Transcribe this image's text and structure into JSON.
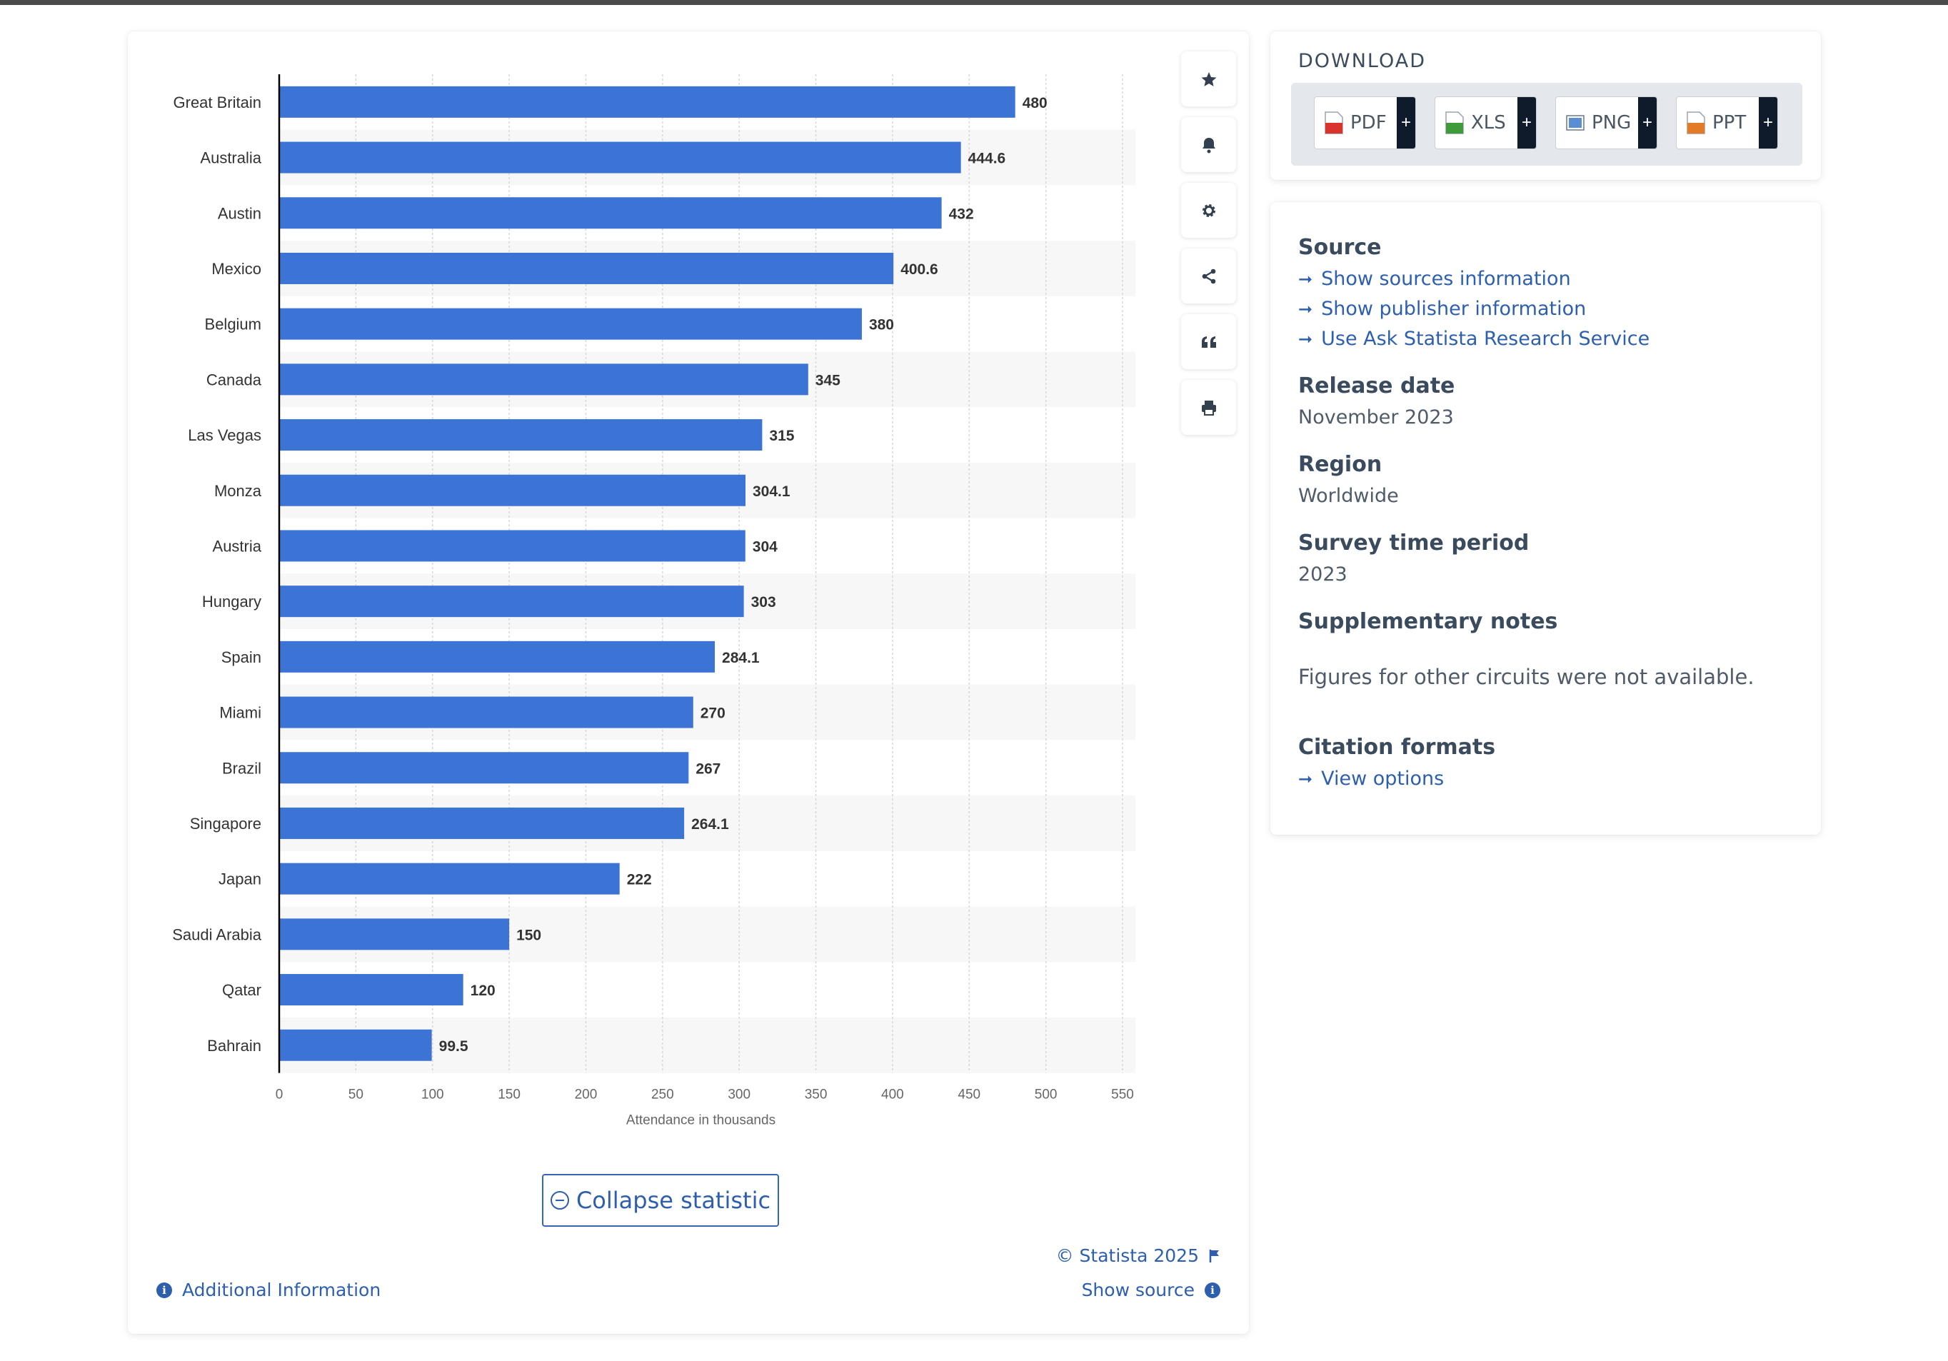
{
  "chart_data": {
    "type": "bar",
    "orientation": "horizontal",
    "categories": [
      "Great Britain",
      "Australia",
      "Austin",
      "Mexico",
      "Belgium",
      "Canada",
      "Las Vegas",
      "Monza",
      "Austria",
      "Hungary",
      "Spain",
      "Miami",
      "Brazil",
      "Singapore",
      "Japan",
      "Saudi Arabia",
      "Qatar",
      "Bahrain"
    ],
    "values": [
      480,
      444.6,
      432,
      400.6,
      380,
      345,
      315,
      304.1,
      304,
      303,
      284.1,
      270,
      267,
      264.1,
      222,
      150,
      120,
      99.5
    ],
    "value_labels": [
      "480",
      "444.6",
      "432",
      "400.6",
      "380",
      "345",
      "315",
      "304.1",
      "304",
      "303",
      "284.1",
      "270",
      "267",
      "264.1",
      "222",
      "150",
      "120",
      "99.5"
    ],
    "xlabel": "Attendance in thousands",
    "xlim": [
      0,
      550
    ],
    "xticks": [
      0,
      50,
      100,
      150,
      200,
      250,
      300,
      350,
      400,
      450,
      500,
      550
    ],
    "grid": true,
    "bar_color": "#3c74d6"
  },
  "toolbar": {
    "icons": [
      "star-icon",
      "bell-icon",
      "gear-icon",
      "share-icon",
      "quote-icon",
      "print-icon"
    ]
  },
  "collapse_label": "Collapse statistic",
  "footer": {
    "additional_info": "Additional Information",
    "copyright": "© Statista 2025",
    "show_source": "Show source"
  },
  "download": {
    "title": "DOWNLOAD",
    "formats": [
      "PDF",
      "XLS",
      "PNG",
      "PPT"
    ],
    "plus": "+"
  },
  "meta": {
    "source_title": "Source",
    "source_links": [
      "Show sources information",
      "Show publisher information",
      "Use Ask Statista Research Service"
    ],
    "release_title": "Release date",
    "release_value": "November 2023",
    "region_title": "Region",
    "region_value": "Worldwide",
    "survey_title": "Survey time period",
    "survey_value": "2023",
    "notes_title": "Supplementary notes",
    "notes_value": "Figures for other circuits were not available.",
    "citation_title": "Citation formats",
    "citation_link": "View options"
  },
  "colors": {
    "accent": "#2d5fae",
    "bar": "#3c74d6",
    "dark": "#0f1a2b"
  }
}
